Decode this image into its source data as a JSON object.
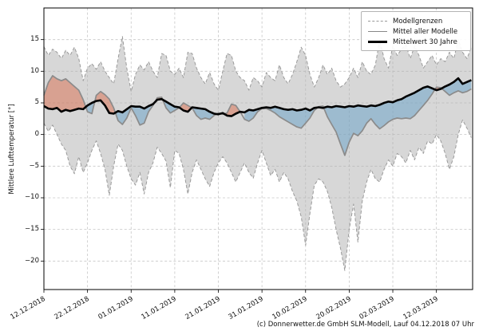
{
  "figure": {
    "title": "",
    "ylabel": "Mittlere Lufttemperatur [°]",
    "footer": "(c) Donnerwetter.de GmbH SLM-Modell, Lauf 04.12.2018 07 Uhr"
  },
  "legend": {
    "items": [
      {
        "label": "Modellgrenzen",
        "style": "dashed-gray"
      },
      {
        "label": "Mittel aller Modelle",
        "style": "solid-gray"
      },
      {
        "label": "Mittelwert 30 Jahre",
        "style": "solid-black-thick"
      }
    ]
  },
  "chart_data": {
    "type": "line",
    "title": "",
    "ylabel": "Mittlere Lufttemperatur [°]",
    "grid": true,
    "legend_position": "upper right",
    "xlim": [
      0,
      98.3
    ],
    "ylim": [
      -24.5,
      20
    ],
    "xticks": {
      "positions": [
        0,
        10,
        20,
        30,
        40,
        50,
        60,
        70,
        80,
        90
      ],
      "labels": [
        "12.12.2018",
        "22.12.2018",
        "01.01.2019",
        "11.01.2019",
        "21.01.2019",
        "31.01.2019",
        "10.02.2019",
        "20.02.2019",
        "02.03.2019",
        "12.03.2019"
      ]
    },
    "yticks": {
      "positions": [
        15,
        10,
        5,
        0,
        -5,
        -10,
        -15,
        -20
      ],
      "labels": [
        "15",
        "10",
        "5",
        "0",
        "−5",
        "−10",
        "−15",
        "−20"
      ]
    },
    "fill_colors": {
      "band": "rgba(175,175,175,0.5)",
      "above_mean": "rgba(217,95,60,0.45)",
      "below_mean": "rgba(100,160,200,0.5)"
    },
    "series": [
      {
        "name": "Modellgrenzen (oberes Limit)",
        "role": "band_upper",
        "color": "#9a9a9a",
        "values": [
          13.9,
          12.5,
          13.5,
          13.0,
          12.0,
          13.3,
          12.5,
          13.8,
          12.0,
          8.5,
          10.5,
          11.2,
          10.3,
          11.5,
          10.0,
          9.0,
          8.0,
          12.0,
          15.5,
          10.5,
          6.8,
          9.5,
          11.0,
          10.2,
          11.5,
          10.0,
          9.0,
          12.8,
          12.5,
          10.0,
          9.5,
          10.5,
          9.0,
          13.0,
          12.8,
          10.5,
          9.0,
          8.0,
          9.8,
          8.0,
          7.0,
          10.0,
          12.8,
          12.5,
          10.0,
          9.0,
          8.5,
          7.0,
          9.0,
          8.5,
          7.5,
          9.8,
          9.0,
          8.5,
          11.0,
          9.0,
          8.0,
          9.5,
          11.5,
          13.8,
          12.5,
          9.5,
          7.5,
          9.0,
          11.0,
          9.5,
          10.5,
          8.5,
          7.5,
          8.0,
          9.0,
          10.5,
          9.0,
          11.5,
          10.0,
          9.5,
          11.0,
          15.0,
          12.0,
          10.5,
          14.0,
          12.5,
          13.5,
          14.2,
          12.0,
          14.0,
          12.5,
          10.5,
          11.5,
          12.5,
          11.0,
          12.0,
          11.5,
          13.0,
          12.0,
          15.0,
          13.0,
          12.0,
          13.8
        ]
      },
      {
        "name": "Modellgrenzen (unteres Limit)",
        "role": "band_lower",
        "color": "#9a9a9a",
        "values": [
          1.8,
          0.5,
          1.5,
          0.0,
          -1.5,
          -2.5,
          -5.0,
          -6.2,
          -3.5,
          -6.0,
          -4.5,
          -2.5,
          -1.0,
          -3.0,
          -5.5,
          -9.6,
          -5.0,
          -1.5,
          -2.5,
          -5.0,
          -7.0,
          -8.0,
          -6.0,
          -9.4,
          -6.0,
          -4.5,
          -2.0,
          -3.0,
          -4.2,
          -8.4,
          -2.5,
          -3.0,
          -5.5,
          -9.4,
          -6.0,
          -4.0,
          -5.5,
          -7.0,
          -8.2,
          -6.0,
          -4.5,
          -3.5,
          -4.5,
          -6.0,
          -7.5,
          -6.0,
          -4.5,
          -6.0,
          -6.9,
          -4.5,
          -2.5,
          -4.5,
          -6.5,
          -5.5,
          -7.5,
          -6.0,
          -7.0,
          -9.0,
          -10.5,
          -13.0,
          -17.5,
          -12.5,
          -8.0,
          -7.0,
          -7.5,
          -9.0,
          -11.5,
          -15.0,
          -18.0,
          -21.5,
          -15.0,
          -11.0,
          -17.0,
          -10.5,
          -7.5,
          -5.5,
          -7.0,
          -7.5,
          -5.5,
          -4.0,
          -5.0,
          -3.0,
          -3.5,
          -4.5,
          -2.5,
          -4.0,
          -2.0,
          -3.0,
          -1.0,
          -1.5,
          0.0,
          -1.0,
          -3.0,
          -5.5,
          -3.5,
          0.0,
          2.3,
          1.0,
          -0.5
        ]
      },
      {
        "name": "Mittel aller Modelle",
        "role": "model_mean",
        "color": "#8b8b8b",
        "values": [
          6.2,
          8.2,
          9.3,
          8.8,
          8.5,
          8.8,
          8.2,
          7.6,
          7.0,
          5.5,
          3.6,
          3.3,
          6.2,
          6.8,
          6.3,
          5.6,
          4.2,
          2.2,
          1.6,
          2.6,
          4.2,
          3.0,
          1.5,
          1.8,
          3.6,
          4.6,
          5.8,
          5.9,
          4.2,
          3.4,
          3.8,
          4.2,
          5.0,
          4.6,
          4.2,
          3.0,
          2.4,
          2.6,
          2.4,
          3.0,
          3.4,
          3.2,
          3.4,
          4.8,
          4.6,
          3.6,
          2.4,
          2.1,
          2.6,
          3.6,
          4.1,
          4.1,
          3.8,
          3.4,
          2.8,
          2.4,
          2.0,
          1.6,
          1.2,
          1.0,
          1.8,
          2.6,
          3.8,
          4.4,
          4.5,
          2.8,
          1.6,
          0.4,
          -1.5,
          -3.3,
          -1.2,
          0.2,
          -0.2,
          0.6,
          1.8,
          2.5,
          1.6,
          0.9,
          1.4,
          2.0,
          2.4,
          2.6,
          2.5,
          2.6,
          2.5,
          3.0,
          3.8,
          4.6,
          5.4,
          6.4,
          7.5,
          7.4,
          6.8,
          6.2,
          6.6,
          6.9,
          6.6,
          6.8,
          7.2
        ]
      },
      {
        "name": "Mittelwert 30 Jahre",
        "role": "mean_30y",
        "color": "#000000",
        "values": [
          4.5,
          4.1,
          4.0,
          4.2,
          3.6,
          3.9,
          3.7,
          3.9,
          4.1,
          4.0,
          4.6,
          5.0,
          5.3,
          5.4,
          4.6,
          3.4,
          3.3,
          3.7,
          3.5,
          4.0,
          4.5,
          4.4,
          4.4,
          4.1,
          4.5,
          4.8,
          5.5,
          5.6,
          5.2,
          4.8,
          4.4,
          4.3,
          3.8,
          3.6,
          4.3,
          4.2,
          4.1,
          4.0,
          3.6,
          3.3,
          3.2,
          3.4,
          3.0,
          2.9,
          3.3,
          3.6,
          3.5,
          3.9,
          3.8,
          4.0,
          4.2,
          4.3,
          4.2,
          4.4,
          4.2,
          4.0,
          3.9,
          4.0,
          3.8,
          3.9,
          4.1,
          3.8,
          4.2,
          4.3,
          4.2,
          4.4,
          4.3,
          4.5,
          4.4,
          4.3,
          4.5,
          4.4,
          4.6,
          4.5,
          4.4,
          4.6,
          4.5,
          4.7,
          5.0,
          5.2,
          5.1,
          5.4,
          5.6,
          6.0,
          6.3,
          6.6,
          7.0,
          7.4,
          7.6,
          7.3,
          7.0,
          7.2,
          7.6,
          7.9,
          8.3,
          8.9,
          8.0,
          8.3,
          8.6
        ]
      }
    ]
  }
}
